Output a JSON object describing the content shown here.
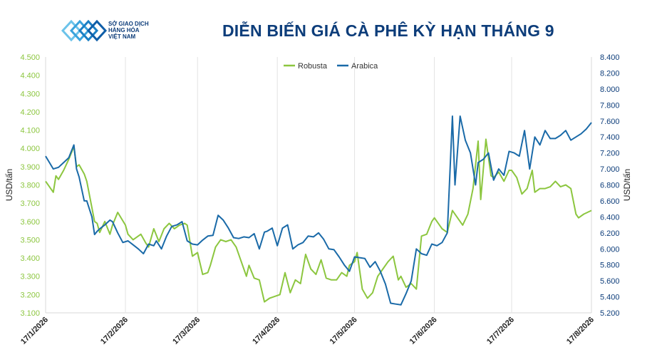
{
  "header": {
    "title": "DIỄN BIẾN GIÁ CÀ PHÊ KỲ HẠN THÁNG 9",
    "logo_lines": [
      "SỞ GIAO DỊCH",
      "HÀNG HÓA",
      "VIỆT NAM"
    ]
  },
  "chart_data": {
    "type": "line",
    "title": "DIỄN BIẾN GIÁ CÀ PHÊ KỲ HẠN THÁNG 9",
    "ylabel_left": "USD/tấn",
    "ylabel_right": "USD/tấn",
    "ylim_left": [
      3100,
      4500
    ],
    "ylim_right": [
      5200,
      8400
    ],
    "yticks_left": [
      "3.100",
      "3.200",
      "3.300",
      "3.400",
      "3.500",
      "3.600",
      "3.700",
      "3.800",
      "3.900",
      "4.000",
      "4.100",
      "4.200",
      "4.300",
      "4.400",
      "4.500"
    ],
    "yticks_right": [
      "5.200",
      "5.400",
      "5.600",
      "5.800",
      "6.000",
      "6.200",
      "6.400",
      "6.600",
      "6.800",
      "7.000",
      "7.200",
      "7.400",
      "7.600",
      "7.800",
      "8.000",
      "8.200",
      "8.400"
    ],
    "xticks": [
      "17/1/2026",
      "17/2/2026",
      "17/3/2026",
      "17/4/2026",
      "17/5/2026",
      "17/6/2026",
      "17/7/2026",
      "17/8/2026"
    ],
    "x_range": [
      "2026-01-17",
      "2026-08-17"
    ],
    "grid": "vertical",
    "legend_position": "top-center",
    "series": [
      {
        "name": "Robusta",
        "axis": "left",
        "color": "#8cc63f",
        "x": [
          "2026-01-17",
          "2026-01-20",
          "2026-01-21",
          "2026-01-22",
          "2026-01-24",
          "2026-01-26",
          "2026-01-28",
          "2026-01-29",
          "2026-01-30",
          "2026-02-01",
          "2026-02-02",
          "2026-02-05",
          "2026-02-06",
          "2026-02-07",
          "2026-02-09",
          "2026-02-11",
          "2026-02-12",
          "2026-02-14",
          "2026-02-17",
          "2026-02-18",
          "2026-02-20",
          "2026-02-23",
          "2026-02-25",
          "2026-02-26",
          "2026-02-28",
          "2026-03-02",
          "2026-03-04",
          "2026-03-06",
          "2026-03-08",
          "2026-03-10",
          "2026-03-12",
          "2026-03-13",
          "2026-03-15",
          "2026-03-17",
          "2026-03-19",
          "2026-03-21",
          "2026-03-22",
          "2026-03-24",
          "2026-03-26",
          "2026-03-28",
          "2026-03-30",
          "2026-04-01",
          "2026-04-03",
          "2026-04-05",
          "2026-04-06",
          "2026-04-08",
          "2026-04-10",
          "2026-04-12",
          "2026-04-14",
          "2026-04-16",
          "2026-04-18",
          "2026-04-20",
          "2026-04-22",
          "2026-04-24",
          "2026-04-26",
          "2026-04-28",
          "2026-04-30",
          "2026-05-02",
          "2026-05-04",
          "2026-05-06",
          "2026-05-08",
          "2026-05-10",
          "2026-05-12",
          "2026-05-14",
          "2026-05-15",
          "2026-05-17",
          "2026-05-18",
          "2026-05-20",
          "2026-05-22",
          "2026-05-24",
          "2026-05-26",
          "2026-05-28",
          "2026-05-30",
          "2026-06-01",
          "2026-06-03",
          "2026-06-04",
          "2026-06-06",
          "2026-06-08",
          "2026-06-10",
          "2026-06-12",
          "2026-06-14",
          "2026-06-16",
          "2026-06-17",
          "2026-06-19",
          "2026-06-20",
          "2026-06-22",
          "2026-06-24",
          "2026-06-26",
          "2026-06-28",
          "2026-06-30",
          "2026-07-02",
          "2026-07-04",
          "2026-07-05",
          "2026-07-07",
          "2026-07-09",
          "2026-07-10",
          "2026-07-12",
          "2026-07-14",
          "2026-07-16",
          "2026-07-17",
          "2026-07-19",
          "2026-07-21",
          "2026-07-23",
          "2026-07-25",
          "2026-07-26",
          "2026-07-28",
          "2026-07-30",
          "2026-08-01",
          "2026-08-03",
          "2026-08-05",
          "2026-08-07",
          "2026-08-09",
          "2026-08-11",
          "2026-08-12",
          "2026-08-14",
          "2026-08-17"
        ],
        "values": [
          3820,
          3760,
          3850,
          3830,
          3880,
          3940,
          4010,
          3900,
          3910,
          3860,
          3820,
          3600,
          3590,
          3540,
          3600,
          3530,
          3580,
          3650,
          3580,
          3530,
          3500,
          3530,
          3480,
          3460,
          3560,
          3490,
          3560,
          3590,
          3560,
          3580,
          3590,
          3580,
          3410,
          3430,
          3310,
          3320,
          3360,
          3460,
          3500,
          3490,
          3500,
          3460,
          3380,
          3300,
          3360,
          3290,
          3280,
          3160,
          3180,
          3190,
          3200,
          3320,
          3210,
          3280,
          3260,
          3420,
          3340,
          3310,
          3390,
          3290,
          3280,
          3280,
          3320,
          3300,
          3360,
          3380,
          3430,
          3230,
          3180,
          3210,
          3300,
          3340,
          3380,
          3410,
          3280,
          3300,
          3240,
          3260,
          3230,
          3520,
          3530,
          3600,
          3620,
          3580,
          3560,
          3540,
          3660,
          3620,
          3580,
          3640,
          3780,
          4040,
          3720,
          4050,
          3850,
          3840,
          3870,
          3820,
          3880,
          3880,
          3840,
          3750,
          3780,
          3880,
          3760,
          3780,
          3780,
          3790,
          3820,
          3790,
          3800,
          3780,
          3640,
          3620,
          3640,
          3660
        ]
      },
      {
        "name": "Arabica",
        "axis": "right",
        "color": "#1a6aa8",
        "x": [
          "2026-01-17",
          "2026-01-20",
          "2026-01-22",
          "2026-01-24",
          "2026-01-26",
          "2026-01-28",
          "2026-01-29",
          "2026-01-30",
          "2026-02-01",
          "2026-02-02",
          "2026-02-04",
          "2026-02-05",
          "2026-02-06",
          "2026-02-07",
          "2026-02-09",
          "2026-02-11",
          "2026-02-12",
          "2026-02-14",
          "2026-02-16",
          "2026-02-18",
          "2026-02-20",
          "2026-02-22",
          "2026-02-24",
          "2026-02-26",
          "2026-02-28",
          "2026-03-01",
          "2026-03-03",
          "2026-03-05",
          "2026-03-07",
          "2026-03-09",
          "2026-03-11",
          "2026-03-13",
          "2026-03-15",
          "2026-03-17",
          "2026-03-19",
          "2026-03-21",
          "2026-03-23",
          "2026-03-25",
          "2026-03-27",
          "2026-03-29",
          "2026-03-31",
          "2026-04-02",
          "2026-04-04",
          "2026-04-06",
          "2026-04-08",
          "2026-04-10",
          "2026-04-12",
          "2026-04-13",
          "2026-04-15",
          "2026-04-17",
          "2026-04-19",
          "2026-04-21",
          "2026-04-23",
          "2026-04-25",
          "2026-04-27",
          "2026-04-29",
          "2026-05-01",
          "2026-05-03",
          "2026-05-05",
          "2026-05-07",
          "2026-05-09",
          "2026-05-11",
          "2026-05-13",
          "2026-05-15",
          "2026-05-17",
          "2026-05-19",
          "2026-05-21",
          "2026-05-23",
          "2026-05-25",
          "2026-05-27",
          "2026-05-29",
          "2026-05-31",
          "2026-06-02",
          "2026-06-04",
          "2026-06-06",
          "2026-06-08",
          "2026-06-10",
          "2026-06-12",
          "2026-06-14",
          "2026-06-16",
          "2026-06-18",
          "2026-06-20",
          "2026-06-22",
          "2026-06-24",
          "2026-06-25",
          "2026-06-27",
          "2026-06-29",
          "2026-07-01",
          "2026-07-03",
          "2026-07-04",
          "2026-07-06",
          "2026-07-08",
          "2026-07-10",
          "2026-07-12",
          "2026-07-14",
          "2026-07-16",
          "2026-07-18",
          "2026-07-20",
          "2026-07-22",
          "2026-07-24",
          "2026-07-26",
          "2026-07-28",
          "2026-07-30",
          "2026-08-01",
          "2026-08-03",
          "2026-08-05",
          "2026-08-07",
          "2026-08-09",
          "2026-08-11",
          "2026-08-13",
          "2026-08-15",
          "2026-08-17"
        ],
        "values": [
          7160,
          7000,
          7020,
          7080,
          7140,
          7300,
          7000,
          6900,
          6600,
          6600,
          6400,
          6180,
          6220,
          6250,
          6300,
          6360,
          6340,
          6200,
          6080,
          6100,
          6050,
          6000,
          5940,
          6060,
          6040,
          6100,
          6000,
          6160,
          6280,
          6300,
          6340,
          6100,
          6060,
          6050,
          6110,
          6160,
          6170,
          6420,
          6360,
          6260,
          6140,
          6130,
          6150,
          6140,
          6190,
          6000,
          6210,
          6220,
          6260,
          6040,
          6260,
          6300,
          6000,
          6050,
          6080,
          6160,
          6150,
          6200,
          6120,
          6000,
          5990,
          5900,
          5800,
          5720,
          5900,
          5890,
          5880,
          5770,
          5840,
          5720,
          5560,
          5320,
          5310,
          5300,
          5440,
          5600,
          6000,
          5940,
          5920,
          6060,
          6040,
          6080,
          6200,
          7660,
          6800,
          7660,
          7360,
          7200,
          6800,
          7080,
          7120,
          7200,
          6860,
          7000,
          6920,
          7220,
          7200,
          7160,
          7480,
          7000,
          7400,
          7300,
          7480,
          7380,
          7380,
          7420,
          7480,
          7360,
          7400,
          7440,
          7500,
          7580
        ]
      }
    ]
  }
}
